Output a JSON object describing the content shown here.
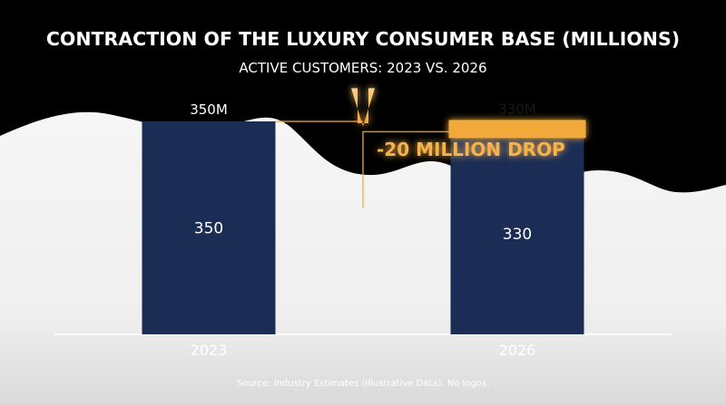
{
  "chart_data": {
    "type": "bar",
    "title": "CONTRACTION OF THE LUXURY CONSUMER BASE (MILLIONS)",
    "subtitle": "ACTIVE CUSTOMERS: 2023 VS. 2026",
    "categories": [
      "2023",
      "2026"
    ],
    "values": [
      350,
      330
    ],
    "value_labels": [
      "350",
      "330"
    ],
    "top_labels": [
      "350M",
      "330M"
    ],
    "annotation": "-20 MILLION DROP",
    "source": "Source: Industry Estimates (Illustrative Data). No logos.",
    "xlabel": "",
    "ylabel": "",
    "grid": false,
    "legend": "none",
    "colors": {
      "bar": "#1b2d55",
      "highlight": "#f2a93b",
      "annotation_text": "#f6b24c",
      "background_dark": "#000000",
      "background_light": "#f2f2f2"
    }
  }
}
